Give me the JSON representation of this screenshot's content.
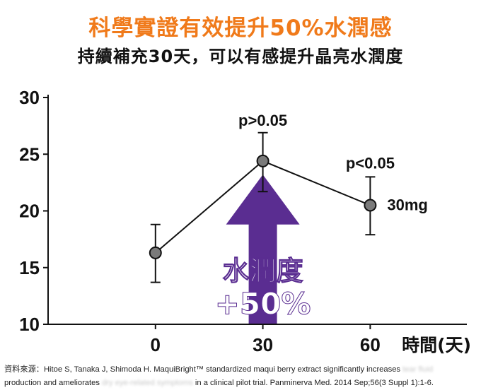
{
  "header": {
    "title": "科學實證有效提升50%水潤感",
    "subtitle": "持續補充30天，可以有感提升晶亮水潤度"
  },
  "chart_data": {
    "type": "line",
    "x": [
      0,
      30,
      60
    ],
    "xticks": [
      "0",
      "30",
      "60"
    ],
    "xlabel": "時間(天)",
    "ylabel": "",
    "xlim": [
      -30,
      87
    ],
    "ylim": [
      10,
      30
    ],
    "yticks": [
      "10",
      "15",
      "20",
      "25",
      "30"
    ],
    "grid": false,
    "series": [
      {
        "name": "30mg",
        "values": [
          16.3,
          24.4,
          20.5
        ],
        "error_low": [
          13.7,
          21.7,
          17.9
        ],
        "error_high": [
          18.8,
          26.9,
          23.0
        ]
      }
    ],
    "annotations": [
      "p>0.05",
      "p<0.05"
    ],
    "arrow_text_line1": "水潤度",
    "arrow_text_line2": "+50%",
    "colors": {
      "line": "#111111",
      "marker": "#7a7a7a",
      "arrow": "#5a2d91",
      "title": "#f07a1a"
    }
  },
  "source": {
    "part1": "資料來源：Hitoe S, Tanaka J, Shimoda H. MaquiBright™ standardized maqui berry extract significantly increases",
    "blur1": "tear fluid",
    "part2": "production and ameliorates",
    "blur2": "dry eye-related symptoms",
    "part3": "in a clinical pilot trial. Panminerva Med. 2014 Sep;56(3 Suppl 1):1-6."
  }
}
